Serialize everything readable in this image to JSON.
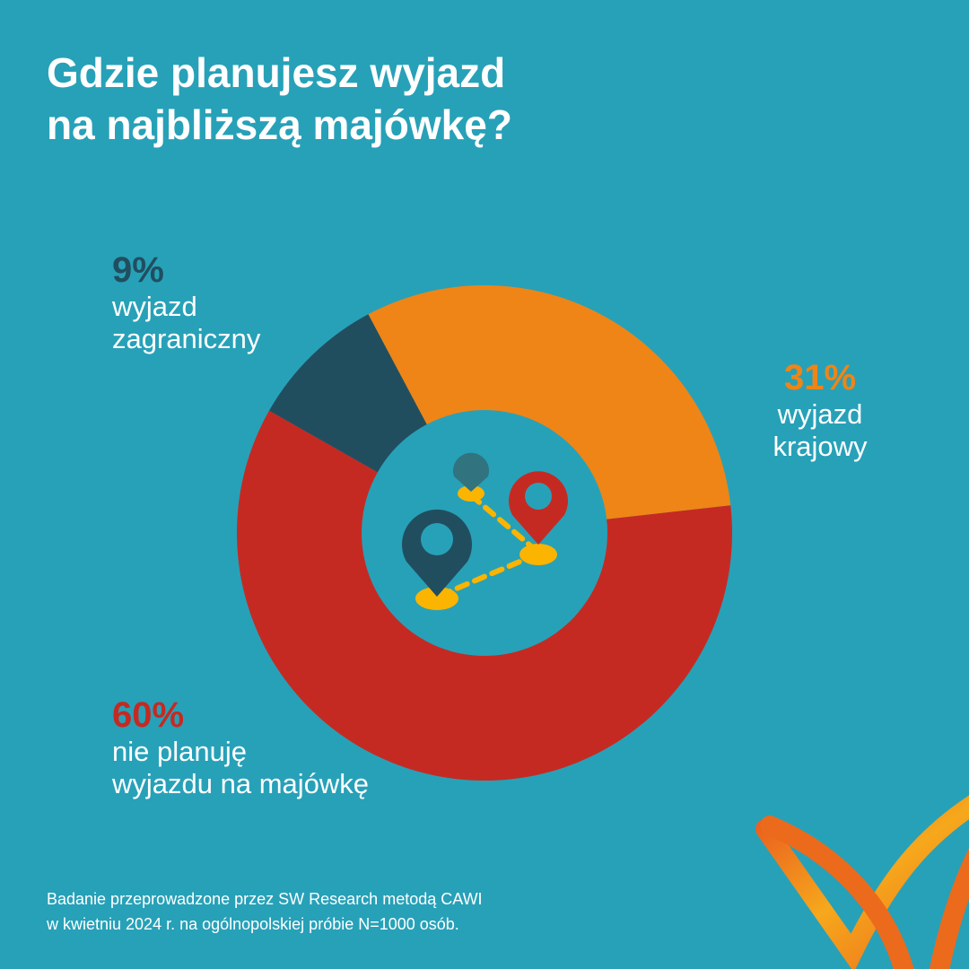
{
  "title": {
    "line1": "Gdzie planujesz wyjazd",
    "line2": "na najbliższą majówkę?"
  },
  "chart_data": {
    "type": "pie",
    "subtype": "donut",
    "title": "Gdzie planujesz wyjazd na najbliższą majówkę?",
    "slices": [
      {
        "key": "domestic",
        "label": "wyjazd krajowy",
        "label_lines": [
          "wyjazd",
          "krajowy"
        ],
        "value": 31,
        "display": "31%",
        "color": "#ef8516"
      },
      {
        "key": "none",
        "label": "nie planuję wyjazdu na majówkę",
        "label_lines": [
          "nie planuję",
          "wyjazdu na majówkę"
        ],
        "value": 60,
        "display": "60%",
        "color": "#c52a22"
      },
      {
        "key": "abroad",
        "label": "wyjazd zagraniczny",
        "label_lines": [
          "wyjazd",
          "zagraniczny"
        ],
        "value": 9,
        "display": "9%",
        "color": "#214e5f"
      }
    ]
  },
  "footnote": {
    "line1": "Badanie przeprowadzone przez SW Research metodą CAWI",
    "line2": "w kwietniu 2024 r. na ogólnopolskiej próbie N=1000 osób."
  },
  "colors": {
    "background": "#27a1b8",
    "orange": "#ef8516",
    "red": "#c52a22",
    "dark": "#214e5f",
    "yellow": "#fbb400"
  }
}
